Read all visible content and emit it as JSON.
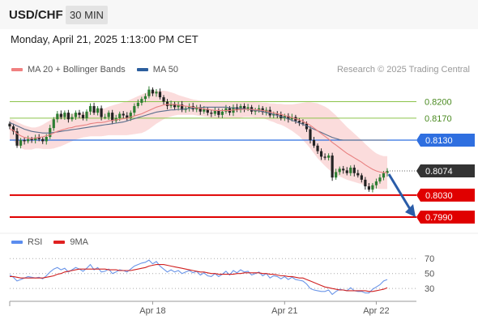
{
  "header": {
    "symbol": "USD/CHF",
    "timeframe": "30 MIN",
    "datetime": "Monday, April 21, 2025 1:13:00 PM CET"
  },
  "legend_main": [
    {
      "label": "MA 20 + Bollinger Bands",
      "color": "#f08080"
    },
    {
      "label": "MA 50",
      "color": "#2c5f9e"
    }
  ],
  "credit": "Research © 2025 Trading Central",
  "legend_rsi": [
    {
      "label": "RSI",
      "color": "#5b8def"
    },
    {
      "label": "9MA",
      "color": "#e02020"
    }
  ],
  "colors": {
    "bull": "#2e7d32",
    "bear": "#222222",
    "green_level": "#8bc34a",
    "blue_level": "#2f6fe0",
    "red_level": "#e00000",
    "current": "#333333",
    "arrow": "#2a5ca8",
    "band": "#f9d0d0"
  },
  "chart_data": [
    {
      "type": "candlestick",
      "title": "",
      "x_ticks": [
        "Apr 18",
        "Apr 21",
        "Apr 22"
      ],
      "ylim": [
        0.7965,
        0.8245
      ],
      "levels": [
        {
          "value": 0.82,
          "label": "0.8200",
          "style": "green"
        },
        {
          "value": 0.817,
          "label": "0.8170",
          "style": "green"
        },
        {
          "value": 0.813,
          "label": "0.8130",
          "style": "blue"
        },
        {
          "value": 0.8074,
          "label": "0.8074",
          "style": "current"
        },
        {
          "value": 0.803,
          "label": "0.8030",
          "style": "red"
        },
        {
          "value": 0.799,
          "label": "0.7990",
          "style": "red"
        }
      ],
      "close": [
        0.8155,
        0.8146,
        0.812,
        0.813,
        0.8128,
        0.8132,
        0.813,
        0.8135,
        0.8132,
        0.8128,
        0.8136,
        0.8152,
        0.8168,
        0.8178,
        0.8172,
        0.818,
        0.8168,
        0.8172,
        0.818,
        0.8176,
        0.817,
        0.8182,
        0.8192,
        0.818,
        0.8188,
        0.8172,
        0.8172,
        0.818,
        0.8165,
        0.817,
        0.8178,
        0.8175,
        0.817,
        0.818,
        0.8192,
        0.8198,
        0.8205,
        0.821,
        0.8222,
        0.8215,
        0.8218,
        0.8208,
        0.82,
        0.8192,
        0.8196,
        0.819,
        0.8195,
        0.8185,
        0.8188,
        0.8192,
        0.8186,
        0.819,
        0.8182,
        0.8186,
        0.818,
        0.8178,
        0.8184,
        0.8176,
        0.8182,
        0.8188,
        0.818,
        0.819,
        0.8185,
        0.8192,
        0.8187,
        0.819,
        0.8182,
        0.8184,
        0.8188,
        0.8181,
        0.8185,
        0.8175,
        0.8178,
        0.8176,
        0.817,
        0.8174,
        0.8168,
        0.8172,
        0.8165,
        0.8162,
        0.816,
        0.815,
        0.813,
        0.812,
        0.811,
        0.81,
        0.8098,
        0.8102,
        0.8062,
        0.8072,
        0.8078,
        0.8075,
        0.807,
        0.808,
        0.807,
        0.8066,
        0.8058,
        0.8046,
        0.804,
        0.8048,
        0.8055,
        0.8062,
        0.807,
        0.8074
      ],
      "ma20": [
        0.815,
        0.8148,
        0.8142,
        0.8138,
        0.8135,
        0.8134,
        0.8133,
        0.8134,
        0.8135,
        0.8136,
        0.8138,
        0.814,
        0.8143,
        0.8146,
        0.8148,
        0.815,
        0.8152,
        0.8153,
        0.8155,
        0.8156,
        0.8157,
        0.8158,
        0.816,
        0.8161,
        0.8162,
        0.8162,
        0.8163,
        0.8165,
        0.8166,
        0.8167,
        0.8168,
        0.8169,
        0.817,
        0.8172,
        0.8174,
        0.8176,
        0.8178,
        0.8181,
        0.8184,
        0.8187,
        0.819,
        0.8192,
        0.8194,
        0.8195,
        0.8195,
        0.8195,
        0.8194,
        0.8193,
        0.8192,
        0.8191,
        0.819,
        0.8189,
        0.8188,
        0.8187,
        0.8186,
        0.8185,
        0.8184,
        0.8184,
        0.8184,
        0.8184,
        0.8184,
        0.8185,
        0.8185,
        0.8186,
        0.8186,
        0.8186,
        0.8186,
        0.8185,
        0.8185,
        0.8184,
        0.8183,
        0.8181,
        0.818,
        0.8178,
        0.8177,
        0.8175,
        0.8173,
        0.8171,
        0.8169,
        0.8167,
        0.8164,
        0.8161,
        0.8157,
        0.8152,
        0.8147,
        0.8142,
        0.8137,
        0.8132,
        0.8126,
        0.8121,
        0.8116,
        0.8111,
        0.8106,
        0.8102,
        0.8098,
        0.8094,
        0.809,
        0.8085,
        0.8081,
        0.8077,
        0.8074,
        0.8072,
        0.8071,
        0.8071
      ],
      "ma50": [
        0.8162,
        0.8159,
        0.8156,
        0.8153,
        0.815,
        0.8148,
        0.8146,
        0.8145,
        0.8144,
        0.8143,
        0.8143,
        0.8143,
        0.8144,
        0.8145,
        0.8146,
        0.8147,
        0.8148,
        0.8149,
        0.815,
        0.8151,
        0.8152,
        0.8153,
        0.8154,
        0.8155,
        0.8156,
        0.8157,
        0.8158,
        0.8159,
        0.816,
        0.8161,
        0.8162,
        0.8163,
        0.8165,
        0.8167,
        0.8169,
        0.8171,
        0.8173,
        0.8175,
        0.8177,
        0.8179,
        0.8181,
        0.8182,
        0.8183,
        0.8184,
        0.8185,
        0.8185,
        0.8186,
        0.8186,
        0.8187,
        0.8188,
        0.8188,
        0.8189,
        0.8189,
        0.819,
        0.819,
        0.819,
        0.819,
        0.819,
        0.819,
        0.819,
        0.8189,
        0.8189,
        0.8188,
        0.8188,
        0.8187,
        0.8186,
        0.8185,
        0.8184,
        0.8183,
        0.8182,
        0.818,
        0.8179,
        0.8177,
        0.8175,
        0.8173,
        0.8171,
        0.8169,
        0.8166,
        0.8164,
        0.8161,
        0.8159,
        0.8156,
        0.8153,
        0.815,
        0.8147,
        0.8144,
        0.8141,
        0.8138,
        0.8135,
        0.8133,
        0.8131,
        0.813,
        0.813,
        0.813,
        0.813,
        0.813,
        0.813,
        0.813,
        0.813,
        0.813,
        0.813,
        0.813,
        0.813,
        0.813
      ],
      "band_width": [
        0.0018,
        0.0019,
        0.0021,
        0.0022,
        0.0022,
        0.0021,
        0.002,
        0.0019,
        0.002,
        0.0022,
        0.0024,
        0.0026,
        0.0028,
        0.0029,
        0.0029,
        0.0028,
        0.0027,
        0.0025,
        0.0024,
        0.0023,
        0.0022,
        0.0022,
        0.0023,
        0.0024,
        0.0025,
        0.0025,
        0.0025,
        0.0026,
        0.0027,
        0.0028,
        0.0029,
        0.003,
        0.0031,
        0.0032,
        0.0033,
        0.0034,
        0.0035,
        0.0035,
        0.0034,
        0.0032,
        0.003,
        0.0028,
        0.0026,
        0.0024,
        0.0022,
        0.002,
        0.0018,
        0.0017,
        0.0016,
        0.0015,
        0.0014,
        0.0014,
        0.0014,
        0.0014,
        0.0014,
        0.0014,
        0.0015,
        0.0015,
        0.0015,
        0.0015,
        0.0015,
        0.0015,
        0.0015,
        0.0015,
        0.0014,
        0.0014,
        0.0014,
        0.0014,
        0.0014,
        0.0014,
        0.0015,
        0.0016,
        0.0017,
        0.0018,
        0.0019,
        0.002,
        0.0022,
        0.0024,
        0.0027,
        0.003,
        0.0034,
        0.0038,
        0.0042,
        0.0046,
        0.005,
        0.0052,
        0.0054,
        0.0055,
        0.0055,
        0.0054,
        0.0052,
        0.005,
        0.0048,
        0.0046,
        0.0044,
        0.0042,
        0.004,
        0.0038,
        0.0036,
        0.0034,
        0.0032,
        0.0031,
        0.003,
        0.003
      ]
    },
    {
      "type": "line",
      "title": "",
      "series": [
        {
          "name": "RSI",
          "values": [
            48,
            45,
            40,
            42,
            44,
            46,
            45,
            44,
            45,
            43,
            47,
            52,
            56,
            58,
            55,
            57,
            52,
            55,
            58,
            56,
            53,
            57,
            62,
            55,
            58,
            52,
            53,
            56,
            50,
            52,
            55,
            54,
            52,
            56,
            60,
            62,
            64,
            65,
            68,
            63,
            66,
            60,
            56,
            52,
            55,
            52,
            54,
            50,
            52,
            54,
            51,
            53,
            48,
            51,
            47,
            46,
            50,
            46,
            49,
            53,
            48,
            54,
            51,
            55,
            52,
            53,
            48,
            50,
            52,
            47,
            50,
            44,
            47,
            46,
            43,
            46,
            42,
            45,
            42,
            41,
            40,
            36,
            30,
            28,
            27,
            26,
            26,
            28,
            22,
            26,
            29,
            28,
            27,
            31,
            27,
            26,
            26,
            24,
            24,
            29,
            32,
            35,
            40,
            42
          ]
        },
        {
          "name": "9MA",
          "values": [
            46,
            46,
            45,
            44,
            44,
            44,
            44,
            44,
            44,
            44,
            45,
            46,
            47,
            49,
            50,
            52,
            53,
            54,
            55,
            56,
            56,
            56,
            56,
            56,
            56,
            56,
            56,
            55,
            55,
            55,
            54,
            54,
            54,
            54,
            55,
            56,
            57,
            58,
            60,
            61,
            62,
            62,
            62,
            61,
            60,
            59,
            58,
            57,
            56,
            55,
            54,
            53,
            52,
            52,
            51,
            50,
            50,
            49,
            49,
            49,
            49,
            49,
            50,
            50,
            51,
            51,
            51,
            51,
            51,
            50,
            50,
            49,
            49,
            48,
            47,
            47,
            46,
            46,
            45,
            44,
            44,
            42,
            40,
            38,
            36,
            34,
            32,
            31,
            30,
            29,
            28,
            28,
            27,
            27,
            27,
            27,
            27,
            27,
            26,
            26,
            27,
            28,
            29,
            31
          ]
        }
      ],
      "y_ticks": [
        70,
        50,
        30
      ],
      "ylim": [
        15,
        80
      ]
    }
  ]
}
